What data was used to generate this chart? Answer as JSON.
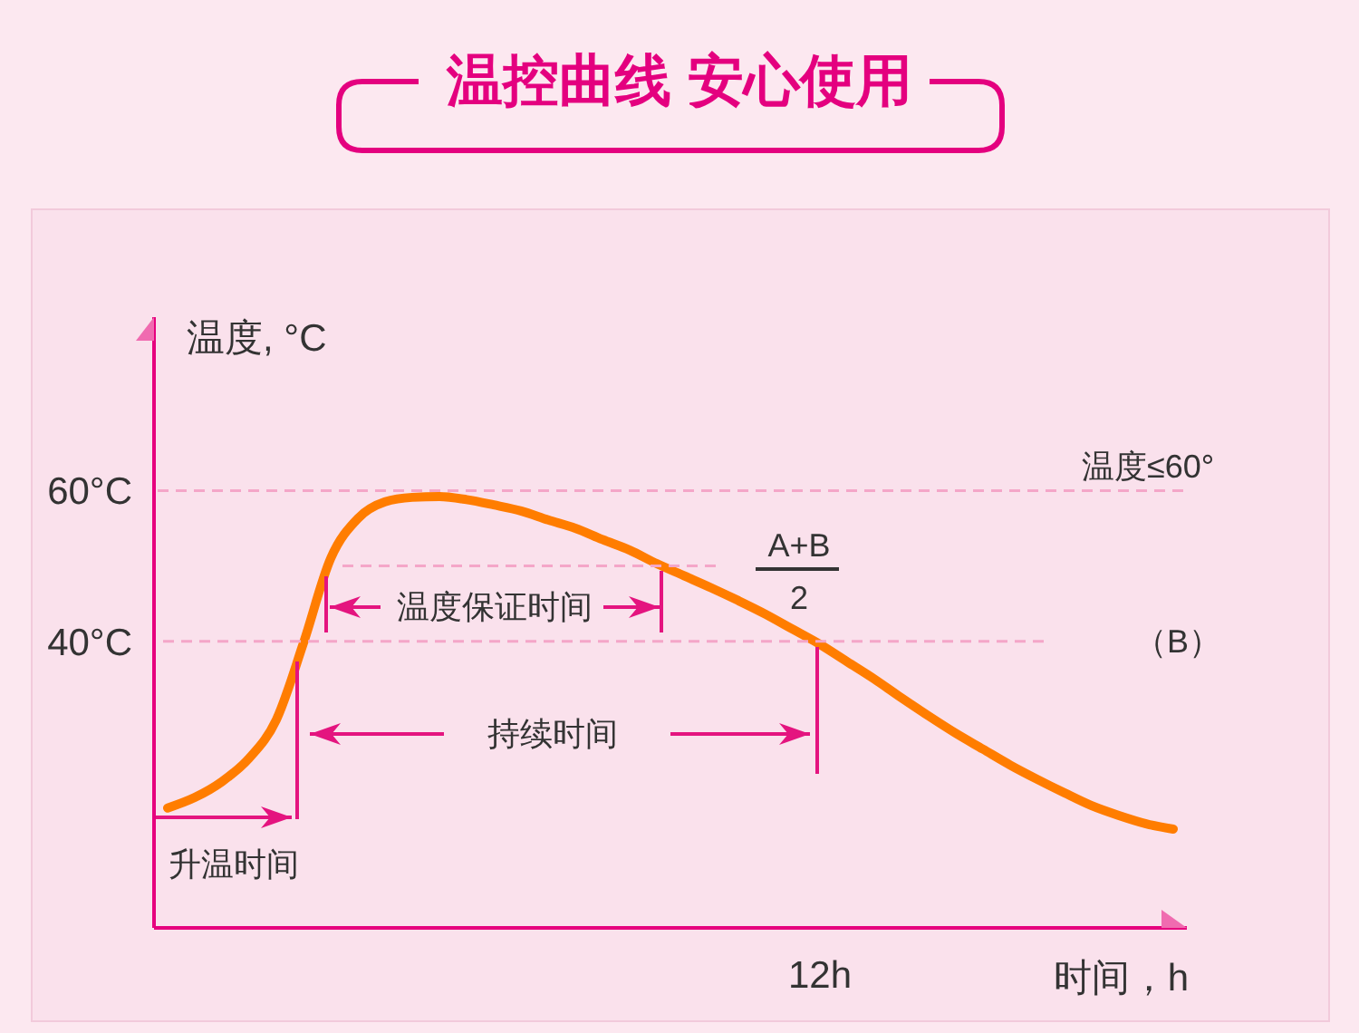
{
  "chart_data": {
    "type": "line",
    "title": "温控曲线 安心使用",
    "xlabel": "时间，h",
    "ylabel": "温度, °C",
    "categories": [
      null,
      null,
      null,
      null,
      null,
      null,
      null,
      null,
      null,
      null,
      null,
      null,
      null,
      null,
      null,
      null,
      null,
      null,
      null,
      null,
      null,
      null,
      null,
      null,
      "12h",
      null,
      null,
      null,
      null,
      null,
      null,
      null,
      null,
      null,
      null,
      null,
      null,
      null
    ],
    "values": [
      17.9,
      19.3,
      21.4,
      24.5,
      29.6,
      39.8,
      51.0,
      56.3,
      58.5,
      59.1,
      59.2,
      58.8,
      58.1,
      57.3,
      56.1,
      55.0,
      53.5,
      52.1,
      50.3,
      48.7,
      47.1,
      45.4,
      43.6,
      41.6,
      39.6,
      37.3,
      35.0,
      32.5,
      30.1,
      27.8,
      25.7,
      23.6,
      21.7,
      19.9,
      18.2,
      16.9,
      15.8,
      15.1
    ],
    "color": "#ff7d00",
    "ylim": [
      2,
      83
    ],
    "yticks": [
      {
        "value": 40,
        "label": "40°C"
      },
      {
        "value": 60,
        "label": "60°C"
      }
    ],
    "ref_lines": [
      {
        "axis": "y",
        "value": 60,
        "label": "温度≤60°",
        "color": "#f4a6c8",
        "line_style": "dashed"
      },
      {
        "axis": "y",
        "value": 40,
        "label": "（B）",
        "color": "#f4a6c8",
        "line_style": "dashed"
      },
      {
        "axis": "y",
        "value": 50,
        "color": "#f4a6c8",
        "line_style": "dashed"
      }
    ],
    "annotations": [
      "升温时间",
      "温度保证时间",
      "持续时间",
      "A+B",
      "2"
    ],
    "grid": false,
    "marker": "none",
    "line_style": "solid"
  }
}
